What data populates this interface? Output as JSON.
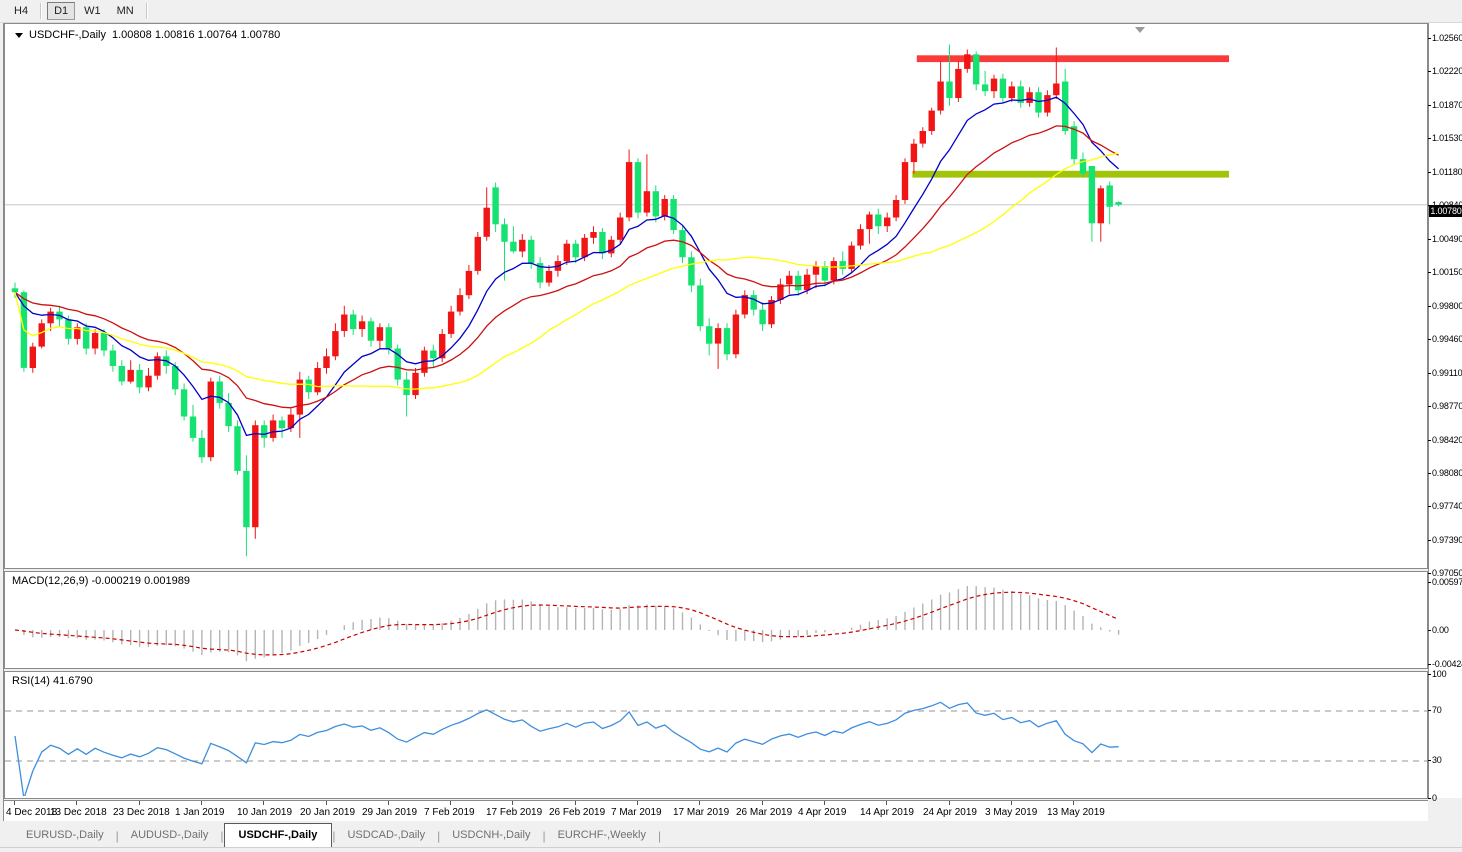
{
  "toolbar": {
    "buttons": [
      "H4",
      "D1",
      "W1",
      "MN"
    ],
    "active": "D1"
  },
  "chart": {
    "symbol_label": "USDCHF-,Daily",
    "ohlc_text": "1.00808 1.00816 1.00764 1.00780",
    "current_price": "1.00780"
  },
  "price_axis": [
    "1.02560",
    "1.02220",
    "1.01870",
    "1.01530",
    "1.01180",
    "1.00840",
    "1.00490",
    "1.00150",
    "0.99800",
    "0.99460",
    "0.99110",
    "0.98770",
    "0.98420",
    "0.98080",
    "0.97740",
    "0.97390",
    "0.97050"
  ],
  "indicators": {
    "macd": {
      "label": "MACD(12,26,9)",
      "values": "-0.000219 0.001989",
      "axis": [
        "0.00597",
        "0.00",
        "-0.00424"
      ]
    },
    "rsi": {
      "label": "RSI(14)",
      "value": "41.6790",
      "axis": [
        "100",
        "70",
        "30",
        "0"
      ],
      "levels": [
        70,
        30
      ]
    }
  },
  "dates": [
    "4 Dec 2018",
    "13 Dec 2018",
    "23 Dec 2018",
    "1 Jan 2019",
    "10 Jan 2019",
    "20 Jan 2019",
    "29 Jan 2019",
    "7 Feb 2019",
    "17 Feb 2019",
    "26 Feb 2019",
    "7 Mar 2019",
    "17 Mar 2019",
    "26 Mar 2019",
    "4 Apr 2019",
    "14 Apr 2019",
    "24 Apr 2019",
    "3 May 2019",
    "13 May 2019"
  ],
  "tabs": [
    {
      "label": "EURUSD-,Daily",
      "active": false
    },
    {
      "label": "AUDUSD-,Daily",
      "active": false
    },
    {
      "label": "USDCHF-,Daily",
      "active": true
    },
    {
      "label": "USDCAD-,Daily",
      "active": false
    },
    {
      "label": "USDCNH-,Daily",
      "active": false
    },
    {
      "label": "EURCHF-,Weekly",
      "active": false
    }
  ],
  "colors": {
    "bull": "#f01616",
    "bear": "#16e272",
    "ma_fast": "#0000c8",
    "ma_mid": "#cc1111",
    "ma_slow": "#ffff00",
    "resistance": "#fb3a3a",
    "support": "#a2c408",
    "price_line": "#c8c8c8",
    "rsi_line": "#3e8ede",
    "macd_signal": "#cc0000",
    "macd_hist": "#b4b4b4"
  },
  "chart_data": {
    "type": "candlestick",
    "symbol": "USDCHF",
    "timeframe": "Daily",
    "price_range_axis": [
      0.9705,
      1.0256
    ],
    "bars": [
      [
        0.9992,
        0.9998,
        0.9982,
        0.9988
      ],
      [
        0.9988,
        0.999,
        0.9906,
        0.991
      ],
      [
        0.991,
        0.9936,
        0.9905,
        0.9932
      ],
      [
        0.9932,
        0.996,
        0.993,
        0.9956
      ],
      [
        0.9956,
        0.9972,
        0.9948,
        0.9968
      ],
      [
        0.9968,
        0.9974,
        0.9952,
        0.996
      ],
      [
        0.996,
        0.9964,
        0.9934,
        0.994
      ],
      [
        0.994,
        0.9956,
        0.9934,
        0.9952
      ],
      [
        0.9952,
        0.9956,
        0.9924,
        0.993
      ],
      [
        0.993,
        0.995,
        0.9924,
        0.9946
      ],
      [
        0.9946,
        0.995,
        0.9922,
        0.9928
      ],
      [
        0.9928,
        0.9934,
        0.9906,
        0.9912
      ],
      [
        0.9912,
        0.9918,
        0.9892,
        0.9896
      ],
      [
        0.9896,
        0.9918,
        0.9894,
        0.9908
      ],
      [
        0.9908,
        0.9914,
        0.9884,
        0.989
      ],
      [
        0.989,
        0.991,
        0.9886,
        0.9902
      ],
      [
        0.9902,
        0.9926,
        0.9898,
        0.9922
      ],
      [
        0.9922,
        0.9928,
        0.9904,
        0.9912
      ],
      [
        0.9912,
        0.9916,
        0.9882,
        0.9888
      ],
      [
        0.9888,
        0.9894,
        0.9856,
        0.986
      ],
      [
        0.986,
        0.9872,
        0.9834,
        0.9838
      ],
      [
        0.9838,
        0.9846,
        0.9812,
        0.9818
      ],
      [
        0.9818,
        0.99,
        0.9814,
        0.9896
      ],
      [
        0.9896,
        0.9902,
        0.9868,
        0.9874
      ],
      [
        0.9874,
        0.9884,
        0.9844,
        0.985
      ],
      [
        0.985,
        0.9856,
        0.98,
        0.9804
      ],
      [
        0.9804,
        0.982,
        0.9716,
        0.9746
      ],
      [
        0.9746,
        0.9856,
        0.9734,
        0.9851
      ],
      [
        0.9851,
        0.9856,
        0.9828,
        0.9838
      ],
      [
        0.9838,
        0.9862,
        0.9834,
        0.9856
      ],
      [
        0.9856,
        0.986,
        0.9838,
        0.9848
      ],
      [
        0.9848,
        0.9868,
        0.9844,
        0.9862
      ],
      [
        0.9862,
        0.9906,
        0.9838,
        0.9898
      ],
      [
        0.9898,
        0.9902,
        0.9878,
        0.9885
      ],
      [
        0.9885,
        0.9916,
        0.9882,
        0.991
      ],
      [
        0.991,
        0.993,
        0.9904,
        0.9922
      ],
      [
        0.9922,
        0.9956,
        0.9918,
        0.9948
      ],
      [
        0.9948,
        0.9974,
        0.9942,
        0.9965
      ],
      [
        0.9965,
        0.997,
        0.9944,
        0.995
      ],
      [
        0.995,
        0.9964,
        0.9942,
        0.9958
      ],
      [
        0.9958,
        0.9962,
        0.9932,
        0.9938
      ],
      [
        0.9938,
        0.9956,
        0.993,
        0.9952
      ],
      [
        0.9952,
        0.9956,
        0.9924,
        0.993
      ],
      [
        0.993,
        0.9934,
        0.9892,
        0.9898
      ],
      [
        0.9898,
        0.9906,
        0.986,
        0.9882
      ],
      [
        0.9882,
        0.991,
        0.9878,
        0.9905
      ],
      [
        0.9905,
        0.9932,
        0.9901,
        0.9928
      ],
      [
        0.9928,
        0.9934,
        0.991,
        0.992
      ],
      [
        0.992,
        0.995,
        0.9916,
        0.9945
      ],
      [
        0.9945,
        0.9974,
        0.9941,
        0.9968
      ],
      [
        0.9968,
        0.9992,
        0.9964,
        0.9985
      ],
      [
        0.9985,
        1.0016,
        0.9981,
        1.001
      ],
      [
        1.001,
        1.005,
        1.0006,
        1.0045
      ],
      [
        1.0045,
        1.0096,
        1.0041,
        1.0075
      ],
      [
        1.0096,
        1.0101,
        1.005,
        1.0058
      ],
      [
        1.0058,
        1.0064,
        1.0,
        1.004
      ],
      [
        1.004,
        1.0056,
        1.0028,
        1.003
      ],
      [
        1.003,
        1.0048,
        1.0024,
        1.0042
      ],
      [
        1.0042,
        1.0046,
        1.0012,
        1.0018
      ],
      [
        1.0018,
        1.0024,
        0.9992,
        0.9998
      ],
      [
        0.9998,
        1.0016,
        0.9994,
        1.001
      ],
      [
        1.001,
        1.0026,
        1.0004,
        1.002
      ],
      [
        1.002,
        1.0042,
        1.0016,
        1.0038
      ],
      [
        1.0038,
        1.0042,
        1.0018,
        1.0024
      ],
      [
        1.0024,
        1.0048,
        1.002,
        1.0044
      ],
      [
        1.0044,
        1.0056,
        1.0038,
        1.005
      ],
      [
        1.005,
        1.0054,
        1.0022,
        1.0028
      ],
      [
        1.0028,
        1.0046,
        1.0024,
        1.0042
      ],
      [
        1.0042,
        1.007,
        1.0038,
        1.0065
      ],
      [
        1.0065,
        1.0135,
        1.0061,
        1.0122
      ],
      [
        1.0122,
        1.0126,
        1.0064,
        1.007
      ],
      [
        1.007,
        1.013,
        1.0066,
        1.0092
      ],
      [
        1.0092,
        1.0098,
        1.006,
        1.0066
      ],
      [
        1.0066,
        1.0088,
        1.0062,
        1.0084
      ],
      [
        1.0084,
        1.0088,
        1.0048,
        1.0052
      ],
      [
        1.0052,
        1.0056,
        1.0018,
        1.0024
      ],
      [
        1.0024,
        1.003,
        0.9988,
        0.9995
      ],
      [
        0.9995,
        1.0002,
        0.9948,
        0.9953
      ],
      [
        0.9953,
        0.9961,
        0.9923,
        0.9935
      ],
      [
        0.9935,
        0.9956,
        0.9909,
        0.9951
      ],
      [
        0.9951,
        0.9956,
        0.9918,
        0.9924
      ],
      [
        0.9924,
        0.997,
        0.992,
        0.9965
      ],
      [
        0.9965,
        0.999,
        0.9961,
        0.9985
      ],
      [
        0.9985,
        0.999,
        0.9964,
        0.997
      ],
      [
        0.997,
        0.9978,
        0.9948,
        0.9955
      ],
      [
        0.9955,
        0.9984,
        0.9951,
        0.998
      ],
      [
        0.998,
        1.0002,
        0.9976,
        0.9996
      ],
      [
        0.9996,
        1.001,
        0.9986,
        1.0005
      ],
      [
        1.0005,
        1.001,
        0.9984,
        0.999
      ],
      [
        0.999,
        1.0012,
        0.9986,
        1.0006
      ],
      [
        1.0006,
        1.002,
        0.9992,
        1.0015
      ],
      [
        1.0015,
        1.002,
        0.9994,
        1.0
      ],
      [
        1.0,
        1.0024,
        0.9996,
        1.002
      ],
      [
        1.002,
        1.003,
        1.0006,
        1.0012
      ],
      [
        1.0012,
        1.004,
        1.0008,
        1.0036
      ],
      [
        1.0036,
        1.0058,
        1.0032,
        1.0053
      ],
      [
        1.0053,
        1.0071,
        1.0038,
        1.0068
      ],
      [
        1.0068,
        1.0074,
        1.0048,
        1.0056
      ],
      [
        1.0056,
        1.007,
        1.005,
        1.0065
      ],
      [
        1.0065,
        1.0088,
        1.0061,
        1.0083
      ],
      [
        1.0083,
        1.0126,
        1.0079,
        1.0122
      ],
      [
        1.0122,
        1.0146,
        1.011,
        1.0141
      ],
      [
        1.0141,
        1.0158,
        1.0137,
        1.0154
      ],
      [
        1.0154,
        1.0178,
        1.015,
        1.0175
      ],
      [
        1.0175,
        1.0226,
        1.0171,
        1.0205
      ],
      [
        1.0205,
        1.0243,
        1.018,
        1.0188
      ],
      [
        1.0188,
        1.0226,
        1.0184,
        1.0218
      ],
      [
        1.0218,
        1.0238,
        1.0214,
        1.0233
      ],
      [
        1.0233,
        1.0236,
        1.0196,
        1.0202
      ],
      [
        1.0202,
        1.0216,
        1.019,
        1.0195
      ],
      [
        1.0195,
        1.0212,
        1.0188,
        1.0208
      ],
      [
        1.0208,
        1.0213,
        1.0183,
        1.0188
      ],
      [
        1.0188,
        1.0205,
        1.0184,
        1.02
      ],
      [
        1.02,
        1.0206,
        1.0178,
        1.0183
      ],
      [
        1.0183,
        1.0199,
        1.0179,
        1.0194
      ],
      [
        1.0194,
        1.0199,
        1.0168,
        1.0173
      ],
      [
        1.0173,
        1.0196,
        1.0169,
        1.0191
      ],
      [
        1.0191,
        1.024,
        1.0187,
        1.0203
      ],
      [
        1.0205,
        1.0218,
        1.015,
        1.0154
      ],
      [
        1.0159,
        1.0164,
        1.012,
        1.0125
      ],
      [
        1.0125,
        1.0132,
        1.0106,
        1.011
      ],
      [
        1.0118,
        1.0118,
        1.004,
        1.0059
      ],
      [
        1.0059,
        1.0098,
        1.004,
        1.0095
      ],
      [
        1.0098,
        1.0102,
        1.0058,
        1.0076
      ],
      [
        1.00808,
        1.00816,
        1.00764,
        1.0078
      ]
    ],
    "moving_averages": [
      {
        "name": "fast",
        "type": "ema",
        "period": 10,
        "color_key": "ma_fast"
      },
      {
        "name": "medium",
        "type": "ema",
        "period": 22,
        "color_key": "ma_mid"
      },
      {
        "name": "slow",
        "type": "sma",
        "period": 34,
        "color_key": "ma_slow"
      }
    ],
    "levels": [
      {
        "name": "resistance-zone",
        "price_top": 1.0232,
        "price_bottom": 1.0225,
        "from_bar": 102,
        "color_key": "resistance"
      },
      {
        "name": "support-zone",
        "price_top": 1.0113,
        "price_bottom": 1.0106,
        "from_bar": 101.5,
        "color_key": "support"
      }
    ],
    "macd_params": [
      12,
      26,
      9
    ],
    "macd_axis_range": [
      0.00597,
      -0.00424
    ],
    "rsi_period": 14,
    "tick_every_bars": 7
  }
}
